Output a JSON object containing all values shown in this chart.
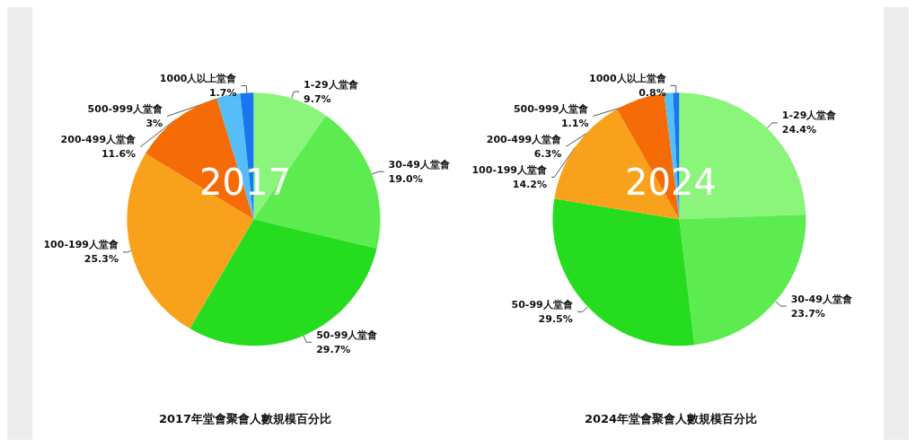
{
  "chart_data": [
    {
      "type": "pie",
      "title": "2017年堂會聚會人數規模百分比",
      "annotations": [
        "2017"
      ],
      "categories": [
        "1-29人堂會",
        "30-49人堂會",
        "50-99人堂會",
        "100-199人堂會",
        "200-499人堂會",
        "500-999人堂會",
        "1000人以上堂會"
      ],
      "values": [
        9.7,
        19.0,
        29.7,
        25.3,
        11.6,
        3,
        1.7
      ],
      "value_labels": [
        "9.7%",
        "19.0%",
        "29.7%",
        "25.3%",
        "11.6%",
        "3%",
        "1.7%"
      ],
      "colors": [
        "#8af57a",
        "#5cec50",
        "#26dc1e",
        "#f9a11b",
        "#f56c06",
        "#55bdf8",
        "#1677ef"
      ],
      "legend": false
    },
    {
      "type": "pie",
      "title": "2024年堂會聚會人數規模百分比",
      "annotations": [
        "2024"
      ],
      "categories": [
        "1-29人堂會",
        "30-49人堂會",
        "50-99人堂會",
        "100-199人堂會",
        "200-499人堂會",
        "500-999人堂會",
        "1000人以上堂會"
      ],
      "values": [
        24.4,
        23.7,
        29.5,
        14.2,
        6.3,
        1.1,
        0.8
      ],
      "value_labels": [
        "24.4%",
        "23.7%",
        "29.5%",
        "14.2%",
        "6.3%",
        "1.1%",
        "0.8%"
      ],
      "colors": [
        "#8af57a",
        "#5cec50",
        "#26dc1e",
        "#f9a11b",
        "#f56c06",
        "#55bdf8",
        "#1677ef"
      ],
      "legend": false
    }
  ]
}
